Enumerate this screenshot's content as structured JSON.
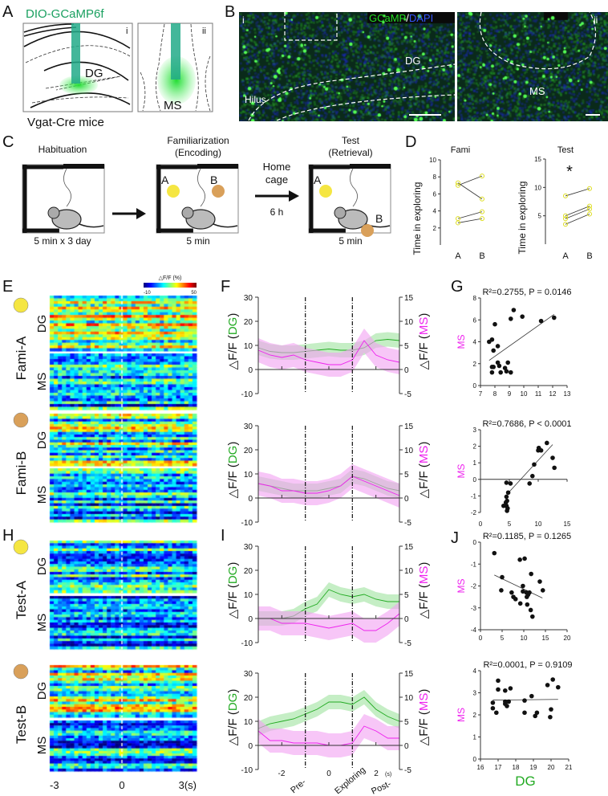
{
  "panels": {
    "A": {
      "label": "A",
      "vector": "DIO-GCaMP6f",
      "mice": "Vgat-Cre mice",
      "sub_i": "i",
      "sub_ii": "ii",
      "region_i": "DG",
      "region_ii": "MS"
    },
    "B": {
      "label": "B",
      "legend_gcamp": "GCaMP",
      "legend_sep": "/",
      "legend_dapi": "DAPI",
      "sub_i": "i",
      "sub_ii": "ii",
      "dg": "DG",
      "hilus": "Hilus",
      "ms": "MS"
    },
    "C": {
      "label": "C",
      "habituation": "Habituation",
      "habituation_time": "5 min x 3 day",
      "familiarization": "Familiarization",
      "encoding": "(Encoding)",
      "fam_time": "5 min",
      "home_cage_1": "Home",
      "home_cage_2": "cage",
      "interval": "6 h",
      "test": "Test",
      "retrieval": "(Retrieval)",
      "test_time": "5 min",
      "object_a": "A",
      "object_b": "B"
    },
    "E": {
      "label": "E",
      "colorbar_title": "△F/F (%)",
      "colorbar_min": "-10",
      "colorbar_max": "50",
      "row_fami_a": "Fami-A",
      "row_fami_b": "Fami-B",
      "dg": "DG",
      "ms": "MS"
    },
    "H": {
      "label": "H",
      "row_test_a": "Test-A",
      "row_test_b": "Test-B",
      "dg": "DG",
      "ms": "MS",
      "x_ticks": [
        "-3",
        "0",
        "3(s)"
      ]
    },
    "F": {
      "label": "F"
    },
    "I": {
      "label": "I",
      "x_ticks": [
        "-2",
        "0",
        "2"
      ],
      "x_unit": "(s)",
      "phases": [
        "Pre-",
        "Exploring",
        "Post-"
      ]
    },
    "G": {
      "label": "G"
    },
    "J": {
      "label": "J",
      "xlabel": "DG"
    },
    "D": {
      "label": "D"
    }
  },
  "colors": {
    "dg": "#22aa22",
    "ms": "#ee22ee",
    "object_a": "#f5e642",
    "object_b": "#d9a05a",
    "gcamp": "#22dd22",
    "dapi": "#3355ff"
  },
  "chart_data": [
    {
      "id": "D-fami",
      "type": "line",
      "title": "Fami",
      "ylabel": "Time in exploring",
      "categories": [
        "A",
        "B"
      ],
      "ylim": [
        0,
        10
      ],
      "yticks": [
        2,
        4,
        6,
        8,
        10
      ],
      "series": [
        {
          "values": [
            7.0,
            8.1
          ]
        },
        {
          "values": [
            7.3,
            5.4
          ]
        },
        {
          "values": [
            3.1,
            3.9
          ]
        },
        {
          "values": [
            2.6,
            3.1
          ]
        }
      ]
    },
    {
      "id": "D-test",
      "type": "line",
      "title": "Test",
      "ylabel": "Time in exploring",
      "annotation": "*",
      "categories": [
        "A",
        "B"
      ],
      "ylim": [
        0,
        15
      ],
      "yticks": [
        5,
        10,
        15
      ],
      "series": [
        {
          "values": [
            8.5,
            9.8
          ]
        },
        {
          "values": [
            5.0,
            6.7
          ]
        },
        {
          "values": [
            4.5,
            6.2
          ]
        },
        {
          "values": [
            3.5,
            5.3
          ]
        }
      ]
    },
    {
      "id": "F-fami-a",
      "type": "line",
      "ylabel_left": "△F/F (",
      "ylabel_left_series": "DG",
      "ylabel_right": "△F/F (",
      "ylabel_right_series": "MS",
      "ylim_left": [
        -10,
        30
      ],
      "ylim_right": [
        -5,
        15
      ],
      "yticks_left": [
        "30",
        "20",
        "10",
        "0",
        "-10"
      ],
      "yticks_right": [
        "15",
        "10",
        "5",
        "0",
        "-5"
      ],
      "x": [
        -3,
        -2.5,
        -2,
        -1.5,
        -1,
        -0.5,
        0,
        0.5,
        1,
        1.5,
        2,
        2.5,
        3
      ],
      "series": [
        {
          "name": "DG",
          "axis": "left",
          "values": [
            9,
            7.5,
            7,
            7,
            7.5,
            8,
            8.5,
            8,
            8,
            9,
            12,
            12.5,
            12
          ]
        },
        {
          "name": "MS",
          "axis": "right",
          "values": [
            4,
            3,
            2.5,
            3,
            2,
            1.5,
            1,
            1,
            2,
            6,
            3,
            2,
            1.5
          ]
        }
      ]
    },
    {
      "id": "F-fami-b",
      "type": "line",
      "ylim_left": [
        -10,
        30
      ],
      "ylim_right": [
        -5,
        15
      ],
      "yticks_left": [
        "30",
        "20",
        "10",
        "0",
        "-10"
      ],
      "yticks_right": [
        "15",
        "10",
        "5",
        "0",
        "-5"
      ],
      "x": [
        -3,
        -2.5,
        -2,
        -1.5,
        -1,
        -0.5,
        0,
        0.5,
        1,
        1.5,
        2,
        2.5,
        3
      ],
      "series": [
        {
          "name": "DG",
          "axis": "left",
          "values": [
            6,
            5,
            4,
            3,
            3,
            3,
            4,
            5,
            9,
            8,
            6,
            4,
            3
          ]
        },
        {
          "name": "MS",
          "axis": "right",
          "values": [
            3,
            2.5,
            1.5,
            1.5,
            1,
            1,
            1.5,
            2.5,
            4.5,
            3.5,
            2.5,
            1.5,
            0.5
          ]
        }
      ]
    },
    {
      "id": "I-test-a",
      "type": "line",
      "ylim_left": [
        -10,
        30
      ],
      "ylim_right": [
        -5,
        15
      ],
      "yticks_left": [
        "30",
        "20",
        "10",
        "0",
        "-10"
      ],
      "yticks_right": [
        "15",
        "10",
        "5",
        "0",
        "-5"
      ],
      "x": [
        -3,
        -2.5,
        -2,
        -1.5,
        -1,
        -0.5,
        0,
        0.5,
        1,
        1.5,
        2,
        2.5,
        3
      ],
      "series": [
        {
          "name": "DG",
          "axis": "left",
          "values": [
            0,
            0,
            0,
            1,
            4,
            6,
            12,
            10,
            9,
            10,
            8,
            7,
            7
          ]
        },
        {
          "name": "MS",
          "axis": "right",
          "values": [
            0,
            0,
            -1,
            -1,
            -1,
            -1.5,
            -2,
            -1.5,
            -1,
            -2.5,
            -2.5,
            -1,
            1
          ]
        }
      ]
    },
    {
      "id": "I-test-b",
      "type": "line",
      "ylim_left": [
        -10,
        30
      ],
      "ylim_right": [
        -5,
        15
      ],
      "yticks_left": [
        "30",
        "20",
        "10",
        "0",
        "-10"
      ],
      "yticks_right": [
        "15",
        "10",
        "5",
        "0",
        "-5"
      ],
      "x": [
        -3,
        -2.5,
        -2,
        -1.5,
        -1,
        -0.5,
        0,
        0.5,
        1,
        1.5,
        2,
        2.5,
        3
      ],
      "series": [
        {
          "name": "DG",
          "axis": "left",
          "values": [
            7,
            9,
            10,
            11,
            13,
            15,
            18,
            18,
            17,
            20,
            15,
            12,
            10
          ]
        },
        {
          "name": "MS",
          "axis": "right",
          "values": [
            3,
            1,
            1,
            0.5,
            0.5,
            0.5,
            0,
            0,
            0.5,
            4,
            3,
            1.5,
            1.5
          ]
        }
      ]
    },
    {
      "id": "G-fami-a",
      "type": "scatter",
      "title": "R²=0.2755, P = 0.0146",
      "ylabel": "MS",
      "xlim": [
        7,
        13
      ],
      "ylim": [
        0,
        8
      ],
      "xticks": [
        7,
        8,
        9,
        10,
        11,
        12,
        13
      ],
      "yticks": [
        0,
        2,
        4,
        6,
        8
      ],
      "points": [
        [
          7.6,
          4.0
        ],
        [
          7.8,
          4.2
        ],
        [
          7.9,
          3.2
        ],
        [
          8.0,
          5.6
        ],
        [
          8.2,
          3.6
        ],
        [
          7.8,
          1.2
        ],
        [
          7.8,
          1.7
        ],
        [
          7.9,
          1.7
        ],
        [
          8.2,
          2.1
        ],
        [
          8.3,
          1.8
        ],
        [
          8.4,
          1.2
        ],
        [
          8.7,
          1.6
        ],
        [
          8.8,
          1.3
        ],
        [
          8.9,
          2.1
        ],
        [
          9.1,
          1.2
        ],
        [
          9.1,
          6.1
        ],
        [
          9.3,
          6.9
        ],
        [
          9.9,
          6.3
        ],
        [
          11.2,
          5.9
        ],
        [
          12.1,
          6.2
        ]
      ],
      "fit": [
        [
          7.6,
          2.3
        ],
        [
          12.1,
          6.5
        ]
      ]
    },
    {
      "id": "G-fami-b",
      "type": "scatter",
      "title": "R²=0.7686, P < 0.0001",
      "ylabel": "MS",
      "xlim": [
        0,
        15
      ],
      "ylim": [
        -2,
        3
      ],
      "xticks": [
        0,
        5,
        10,
        15
      ],
      "yticks": [
        -2,
        -1,
        0,
        1,
        2,
        3
      ],
      "points": [
        [
          4.5,
          -0.2
        ],
        [
          5.2,
          -0.25
        ],
        [
          4.8,
          -0.8
        ],
        [
          4.5,
          -1.05
        ],
        [
          4.4,
          -1.4
        ],
        [
          4.6,
          -1.3
        ],
        [
          4.5,
          -1.6
        ],
        [
          4.7,
          -1.75
        ],
        [
          4.0,
          -1.6
        ],
        [
          4.6,
          -1.9
        ],
        [
          8.5,
          -0.25
        ],
        [
          9.0,
          0.2
        ],
        [
          9.3,
          0.9
        ],
        [
          10.0,
          1.75
        ],
        [
          10.1,
          1.9
        ],
        [
          10.5,
          1.75
        ],
        [
          11.5,
          2.2
        ],
        [
          12.5,
          1.3
        ],
        [
          12.8,
          0.7
        ]
      ],
      "fit": [
        [
          4.6,
          -0.9
        ],
        [
          12.5,
          2.1
        ]
      ]
    },
    {
      "id": "J-test-a",
      "type": "scatter",
      "title": "R²=0.1185, P = 0.1265",
      "ylabel": "MS",
      "xlim": [
        0,
        20
      ],
      "ylim": [
        -4,
        0
      ],
      "xticks": [
        0,
        5,
        10,
        15,
        20
      ],
      "yticks": [
        -4,
        -3,
        -2,
        -1,
        0
      ],
      "points": [
        [
          3.2,
          -0.5
        ],
        [
          5,
          -1.6
        ],
        [
          4.8,
          -2.2
        ],
        [
          7.2,
          -2.3
        ],
        [
          7.6,
          -2.5
        ],
        [
          8.1,
          -2.6
        ],
        [
          9.1,
          -0.8
        ],
        [
          10.2,
          -0.75
        ],
        [
          9.2,
          -2.8
        ],
        [
          9.8,
          -2.0
        ],
        [
          9.8,
          -2.25
        ],
        [
          10.6,
          -2.3
        ],
        [
          10.7,
          -2.5
        ],
        [
          11,
          -2.4
        ],
        [
          11.3,
          -2.3
        ],
        [
          10.8,
          -2.85
        ],
        [
          11.6,
          -3.1
        ],
        [
          11.7,
          -1.45
        ],
        [
          12,
          -3.4
        ],
        [
          13.7,
          -1.8
        ],
        [
          14.4,
          -2.2
        ]
      ],
      "fit": [
        [
          3.2,
          -1.5
        ],
        [
          14.3,
          -2.55
        ]
      ]
    },
    {
      "id": "J-test-b",
      "type": "scatter",
      "title": "R²=0.0001, P = 0.9109",
      "ylabel": "MS",
      "xlabel": "DG",
      "xlim": [
        16,
        21
      ],
      "ylim": [
        0,
        4
      ],
      "xticks": [
        16,
        17,
        18,
        19,
        20,
        21
      ],
      "yticks": [
        0,
        1,
        2,
        3,
        4
      ],
      "points": [
        [
          16.7,
          2.55
        ],
        [
          16.7,
          2.3
        ],
        [
          16.9,
          2.1
        ],
        [
          17,
          3.55
        ],
        [
          17,
          3.15
        ],
        [
          17.4,
          3.1
        ],
        [
          17.4,
          2.6
        ],
        [
          17.4,
          2.5
        ],
        [
          17.5,
          2.4
        ],
        [
          17.6,
          2.6
        ],
        [
          17.7,
          3.2
        ],
        [
          18.5,
          2.65
        ],
        [
          18.5,
          2.1
        ],
        [
          18.9,
          2.85
        ],
        [
          19.1,
          1.95
        ],
        [
          19.2,
          2.1
        ],
        [
          19.8,
          3.35
        ],
        [
          20,
          2.25
        ],
        [
          19.95,
          1.9
        ],
        [
          20.1,
          3.6
        ],
        [
          20.4,
          3.25
        ]
      ],
      "fit": [
        [
          16.7,
          2.67
        ],
        [
          20.4,
          2.7
        ]
      ]
    }
  ]
}
